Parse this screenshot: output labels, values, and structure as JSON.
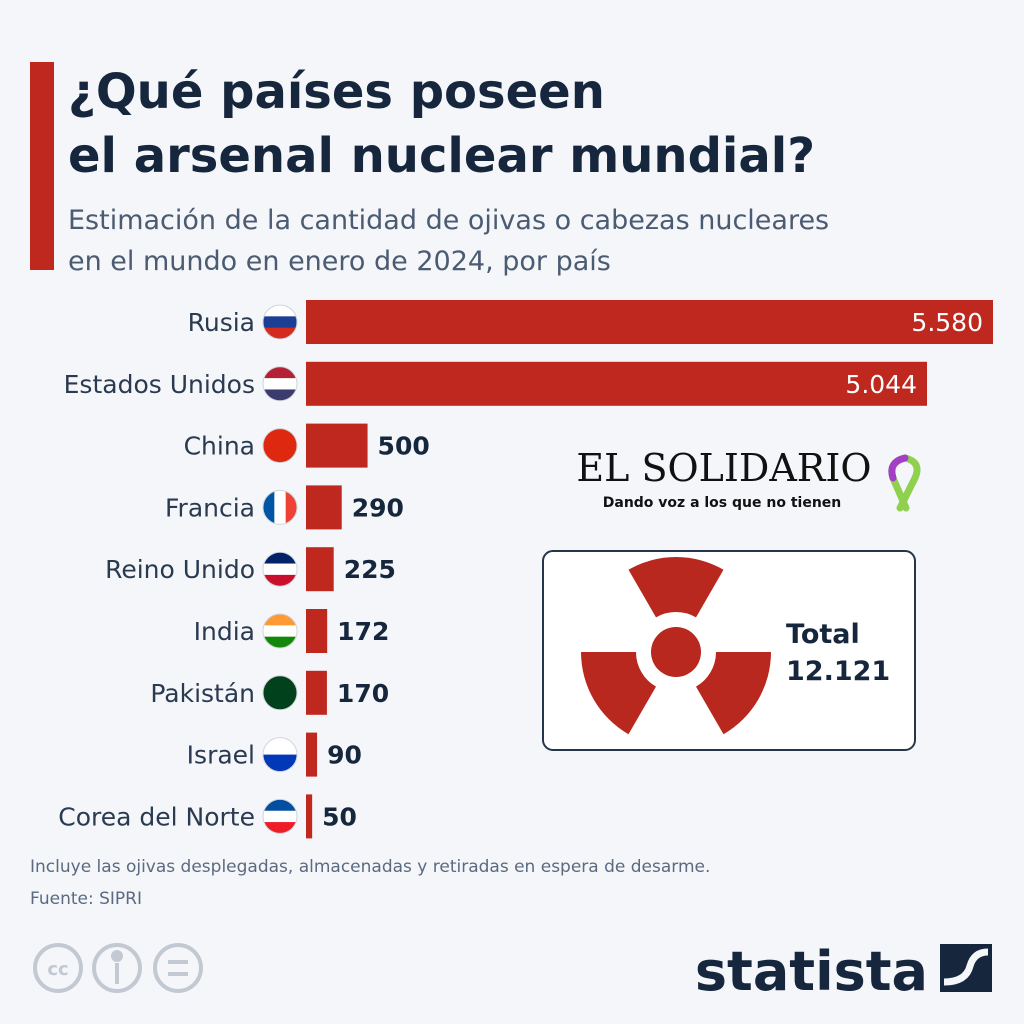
{
  "title_lines": [
    "¿Qué países poseen",
    "el arsenal nuclear mundial?"
  ],
  "subtitle_lines": [
    "Estimación de la cantidad de ojivas o cabezas nucleares",
    "en el mundo en enero de 2024, por país"
  ],
  "chart_data": {
    "type": "bar",
    "orientation": "horizontal",
    "categories": [
      "Rusia",
      "Estados Unidos",
      "China",
      "Francia",
      "Reino Unido",
      "India",
      "Pakistán",
      "Israel",
      "Corea del Norte"
    ],
    "values": [
      5580,
      5044,
      500,
      290,
      225,
      172,
      170,
      90,
      50
    ],
    "value_labels": [
      "5.580",
      "5.044",
      "500",
      "290",
      "225",
      "172",
      "170",
      "90",
      "50"
    ],
    "color": "#bf281f"
  },
  "logo": {
    "name": "EL SOLIDARIO",
    "tagline": "Dando voz a los que no tienen"
  },
  "total": {
    "label": "Total",
    "value_label": "12.121"
  },
  "note": "Incluye las ojivas desplegadas, almacenadas y retiradas en espera de desarme.",
  "source": "Fuente: SIPRI",
  "brand": "statista"
}
